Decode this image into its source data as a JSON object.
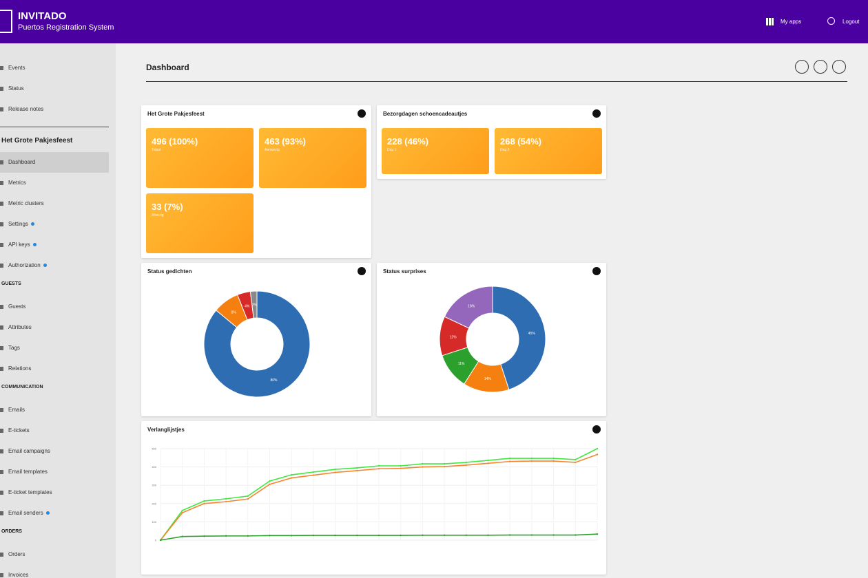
{
  "header": {
    "brand": "INVITADO",
    "subtitle": "Puertos Registration System",
    "actions": [
      "My apps",
      "Logout"
    ]
  },
  "sidebar": {
    "top": [
      "Events",
      "Status",
      "Release notes"
    ],
    "sections": [
      {
        "title": "Het Grote Pakjesfeest",
        "items": [
          {
            "label": "Dashboard",
            "active": true
          },
          {
            "label": "Metrics"
          },
          {
            "label": "Metric clusters"
          },
          {
            "label": "Settings",
            "badge": true
          },
          {
            "label": "API keys",
            "badge": true
          },
          {
            "label": "Authorization",
            "badge": true
          }
        ]
      },
      {
        "title": "GUESTS",
        "items": [
          {
            "label": "Guests"
          },
          {
            "label": "Attributes"
          },
          {
            "label": "Tags"
          },
          {
            "label": "Relations"
          }
        ]
      },
      {
        "title": "COMMUNICATION",
        "items": [
          {
            "label": "Emails"
          },
          {
            "label": "E-tickets"
          },
          {
            "label": "Email campaigns"
          },
          {
            "label": "Email templates"
          },
          {
            "label": "E-ticket templates"
          },
          {
            "label": "Email senders",
            "badge": true
          }
        ]
      },
      {
        "title": "ORDERS",
        "items": [
          {
            "label": "Orders"
          },
          {
            "label": "Invoices"
          }
        ]
      }
    ]
  },
  "page_title": "Dashboard",
  "cards": [
    {
      "title": "Het Grote Pakjesfeest",
      "tiles": [
        {
          "value": "496 (100%)",
          "label": "Totaal"
        },
        {
          "value": "463 (93%)",
          "label": "Aanwezig"
        },
        {
          "value": "33 (7%)",
          "label": "Afwezig"
        }
      ]
    },
    {
      "title": "Bezorgdagen schoencadeautjes",
      "tiles": [
        {
          "value": "228 (46%)",
          "label": "Dag 1"
        },
        {
          "value": "268 (54%)",
          "label": "Dag 2"
        }
      ]
    },
    {
      "title": "Status gedichten",
      "chart_data": {
        "type": "donut",
        "values": [
          86,
          8,
          4,
          2
        ],
        "value_labels": [
          "86%",
          "8%",
          "4%",
          "2%"
        ],
        "colors": [
          "#2f6db3",
          "#f57f0f",
          "#d62a28",
          "#8a8a8a"
        ]
      }
    },
    {
      "title": "Status surprises",
      "chart_data": {
        "type": "donut",
        "values": [
          45,
          14,
          11,
          12,
          18
        ],
        "value_labels": [
          "45%",
          "14%",
          "11%",
          "12%",
          "18%"
        ],
        "colors": [
          "#2f6db3",
          "#f57f0f",
          "#2ca02c",
          "#d62a28",
          "#9467bd"
        ]
      }
    },
    {
      "title": "Verlanglijstjes",
      "chart_data": {
        "type": "line",
        "categories": [
          null,
          null,
          null,
          null,
          null,
          null,
          null,
          null,
          null,
          null,
          null,
          null,
          null,
          null,
          null,
          null,
          null,
          null,
          null,
          null,
          null
        ],
        "series": [
          {
            "color": "#40e840",
            "values": [
              0,
              162,
              214,
              226,
              241,
              323,
              357,
              372,
              387,
              395,
              406,
              406,
              417,
              417,
              425,
              436,
              447,
              447,
              447,
              440,
              500
            ]
          },
          {
            "color": "#f5862a",
            "values": [
              0,
              150,
              200,
              210,
              225,
              305,
              340,
              355,
              370,
              380,
              390,
              392,
              400,
              402,
              410,
              420,
              430,
              432,
              432,
              425,
              468
            ]
          },
          {
            "color": "#2ca02c",
            "values": [
              0,
              20,
              22,
              23,
              23,
              25,
              25,
              26,
              26,
              26,
              26,
              26,
              27,
              27,
              27,
              27,
              28,
              28,
              28,
              28,
              33
            ]
          }
        ],
        "ylim": [
          0,
          500
        ],
        "yticks": [
          0,
          100,
          200,
          300,
          400,
          500
        ],
        "grid": true
      }
    }
  ]
}
